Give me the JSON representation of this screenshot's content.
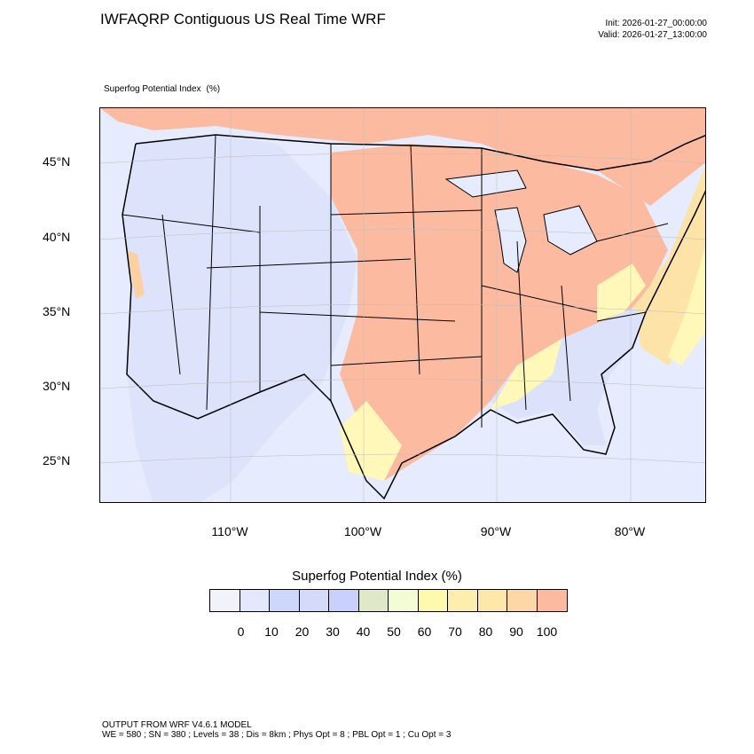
{
  "header": {
    "title": "IWFAQRP Contiguous US Real Time WRF",
    "init": "Init: 2026-01-27_00:00:00",
    "valid": "Valid: 2026-01-27_13:00:00"
  },
  "field": {
    "name": "Superfog Potential Index",
    "units": "(%)"
  },
  "map": {
    "lat_labels": [
      "45°N",
      "40°N",
      "35°N",
      "30°N",
      "25°N"
    ],
    "lon_labels": [
      "110°W",
      "100°W",
      "90°W",
      "80°W"
    ],
    "colors": {
      "low": "#e6ebfd",
      "lowmid": "#cdd5fb",
      "green": "#e2ecc8",
      "yellow": "#fff8b8",
      "mid": "#fde3a7",
      "orange": "#fdd0a2",
      "high": "#fcbba1",
      "water": "#e6ebfd"
    }
  },
  "colorbar": {
    "title": "Superfog Potential Index  (%)",
    "colors": [
      "#f0f3fa",
      "#e3e8fc",
      "#cdd6fb",
      "#d4dafa",
      "#c9d0fb",
      "#dfe9c8",
      "#f4fcd6",
      "#fff9ad",
      "#feeeae",
      "#fde8a9",
      "#fdd8a4",
      "#fcbba1"
    ],
    "labels": [
      "0",
      "10",
      "20",
      "30",
      "40",
      "50",
      "60",
      "70",
      "80",
      "90",
      "100"
    ]
  },
  "footer": {
    "line1": "OUTPUT FROM WRF V4.6.1 MODEL",
    "line2": "WE = 580 ; SN = 380 ; Levels = 38 ; Dis = 8km ; Phys Opt = 8 ; PBL Opt = 1 ; Cu Opt = 3"
  }
}
